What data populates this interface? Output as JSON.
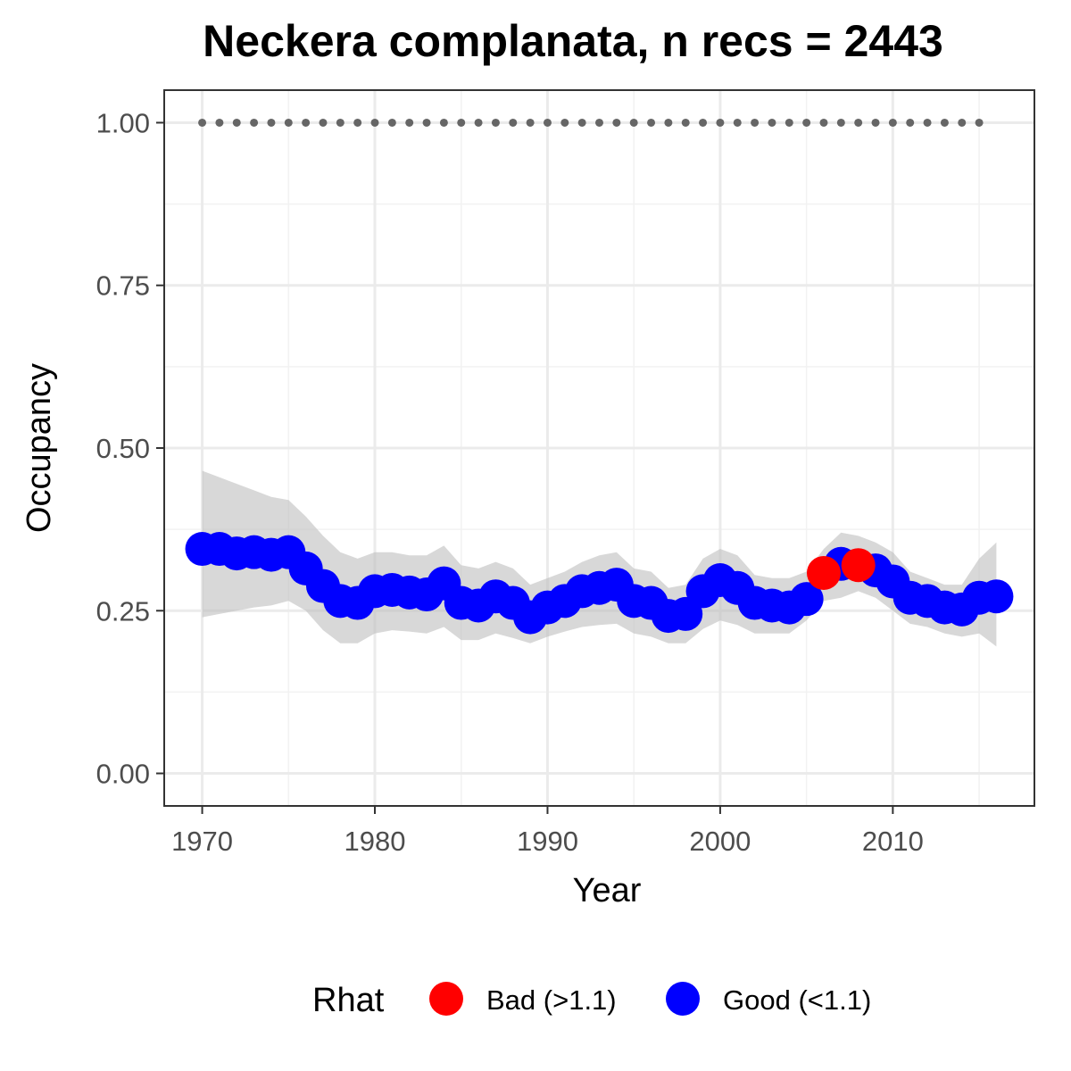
{
  "chart_data": {
    "type": "line",
    "title": "Neckera complanata, n recs = 2443",
    "xlabel": "Year",
    "ylabel": "Occupancy",
    "xlim": [
      1967.8,
      2018.2
    ],
    "ylim": [
      -0.05,
      1.05
    ],
    "x_ticks": [
      1970,
      1980,
      1990,
      2000,
      2010
    ],
    "x_tick_labels": [
      "1970",
      "1980",
      "1990",
      "2000",
      "2010"
    ],
    "y_ticks": [
      0,
      0.25,
      0.5,
      0.75,
      1
    ],
    "y_tick_labels": [
      "0.00",
      "0.25",
      "0.50",
      "0.75",
      "1.00"
    ],
    "grid": true,
    "legend": {
      "position": "bottom",
      "title": "Rhat",
      "entries": [
        {
          "key": "bad",
          "label": "Bad (>1.1)",
          "color": "#ff0000"
        },
        {
          "key": "good",
          "label": "Good (<1.1)",
          "color": "#0000ff"
        }
      ]
    },
    "colors": {
      "bad": "#ff0000",
      "good": "#0000ff",
      "ribbon": "#bebebe",
      "reference": "#666666"
    },
    "reference_points": {
      "y": 1.0,
      "x": [
        1970,
        1971,
        1972,
        1973,
        1974,
        1975,
        1976,
        1977,
        1978,
        1979,
        1980,
        1981,
        1982,
        1983,
        1984,
        1985,
        1986,
        1987,
        1988,
        1989,
        1990,
        1991,
        1992,
        1993,
        1994,
        1995,
        1996,
        1997,
        1998,
        1999,
        2000,
        2001,
        2002,
        2003,
        2004,
        2005,
        2006,
        2007,
        2008,
        2009,
        2010,
        2011,
        2012,
        2013,
        2014,
        2015
      ]
    },
    "series": [
      {
        "x": [
          1970,
          1971,
          1972,
          1973,
          1974,
          1975,
          1976,
          1977,
          1978,
          1979,
          1980,
          1981,
          1982,
          1983,
          1984,
          1985,
          1986,
          1987,
          1988,
          1989,
          1990,
          1991,
          1992,
          1993,
          1994,
          1995,
          1996,
          1997,
          1998,
          1999,
          2000,
          2001,
          2002,
          2003,
          2004,
          2005,
          2006,
          2007,
          2008,
          2009,
          2010,
          2011,
          2012,
          2013,
          2014,
          2015,
          2016
        ],
        "y": [
          0.345,
          0.345,
          0.338,
          0.34,
          0.336,
          0.34,
          0.315,
          0.288,
          0.265,
          0.262,
          0.28,
          0.282,
          0.278,
          0.275,
          0.292,
          0.262,
          0.258,
          0.272,
          0.262,
          0.24,
          0.255,
          0.265,
          0.28,
          0.285,
          0.29,
          0.265,
          0.262,
          0.242,
          0.245,
          0.28,
          0.297,
          0.285,
          0.262,
          0.258,
          0.255,
          0.268,
          0.308,
          0.322,
          0.32,
          0.312,
          0.295,
          0.27,
          0.265,
          0.255,
          0.252,
          0.27,
          0.272
        ],
        "lower": [
          0.24,
          0.245,
          0.25,
          0.255,
          0.258,
          0.265,
          0.25,
          0.22,
          0.2,
          0.2,
          0.215,
          0.22,
          0.218,
          0.215,
          0.225,
          0.205,
          0.205,
          0.215,
          0.208,
          0.2,
          0.21,
          0.218,
          0.225,
          0.228,
          0.23,
          0.215,
          0.21,
          0.2,
          0.2,
          0.222,
          0.235,
          0.228,
          0.215,
          0.215,
          0.215,
          0.235,
          0.265,
          0.27,
          0.28,
          0.27,
          0.25,
          0.23,
          0.225,
          0.215,
          0.21,
          0.215,
          0.195
        ],
        "upper": [
          0.465,
          0.455,
          0.445,
          0.435,
          0.425,
          0.42,
          0.395,
          0.365,
          0.34,
          0.33,
          0.34,
          0.34,
          0.335,
          0.335,
          0.35,
          0.32,
          0.315,
          0.325,
          0.315,
          0.29,
          0.3,
          0.31,
          0.325,
          0.335,
          0.34,
          0.315,
          0.31,
          0.285,
          0.29,
          0.33,
          0.345,
          0.335,
          0.305,
          0.3,
          0.3,
          0.31,
          0.345,
          0.37,
          0.365,
          0.355,
          0.34,
          0.31,
          0.3,
          0.29,
          0.29,
          0.33,
          0.355
        ],
        "rhat": [
          "good",
          "good",
          "good",
          "good",
          "good",
          "good",
          "good",
          "good",
          "good",
          "good",
          "good",
          "good",
          "good",
          "good",
          "good",
          "good",
          "good",
          "good",
          "good",
          "good",
          "good",
          "good",
          "good",
          "good",
          "good",
          "good",
          "good",
          "good",
          "good",
          "good",
          "good",
          "good",
          "good",
          "good",
          "good",
          "good",
          "bad",
          "good",
          "bad",
          "good",
          "good",
          "good",
          "good",
          "good",
          "good",
          "good",
          "good"
        ]
      }
    ]
  }
}
